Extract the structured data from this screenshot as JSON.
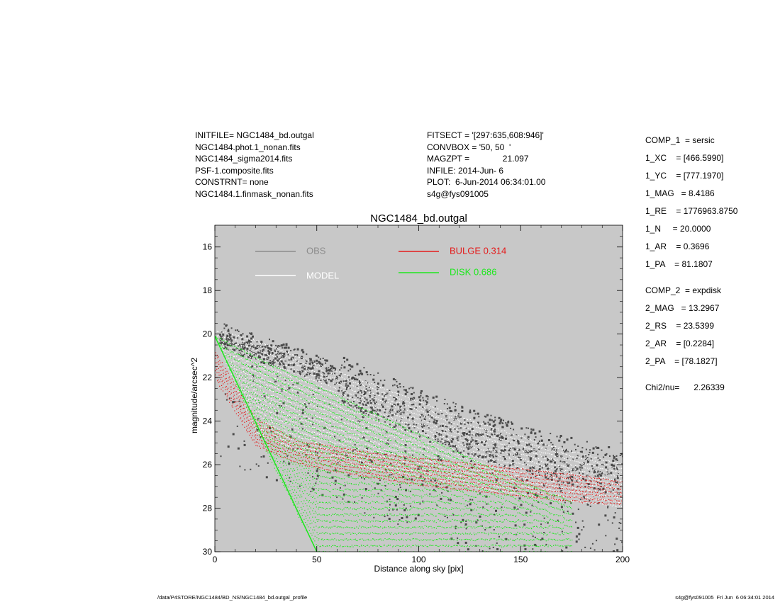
{
  "header_left": [
    "INITFILE= NGC1484_bd.outgal",
    "NGC1484.phot.1_nonan.fits",
    "NGC1484_sigma2014.fits",
    "PSF-1.composite.fits",
    "CONSTRNT= none",
    "NGC1484.1.finmask_nonan.fits"
  ],
  "header_mid": [
    "FITSECT = '[297:635,608:946]'",
    "CONVBOX = '50, 50  '",
    "MAGZPT =              21.097",
    "INFILE: 2014-Jun- 6",
    "PLOT:  6-Jun-2014 06:34:01.00",
    "s4g@fys091005"
  ],
  "header_right": [
    "COMP_1  = sersic",
    "1_XC    = [466.5990]",
    "1_YC    = [777.1970]",
    "1_MAG   = 8.4186",
    "1_RE    = 1776963.8750",
    "1_N     = 20.0000",
    "1_AR    = 0.3696",
    "1_PA    = 81.1807",
    "COMP_2  = expdisk",
    "2_MAG   = 13.2967",
    "2_RS    = 23.5399",
    "2_AR    = [0.2284]",
    "2_PA    = [78.1827]",
    "Chi2/nu=      2.26339"
  ],
  "footer_left": "/data/P4STORE/NGC1484/BD_NS/NGC1484_bd.outgal_profile",
  "footer_right": "s4g@fys091005  Fri Jun  6 06:34:01 2014",
  "colors": {
    "plot_bg": "#c8c8c8",
    "obs": "#4a4a4a",
    "obs_legend": "#8c8c8c",
    "model": "#ffffff",
    "bulge": "#e41a1a",
    "disk": "#1ee81e"
  },
  "chart_data": {
    "type": "scatter",
    "title": "NGC1484_bd.outgal",
    "xlabel": "Distance along sky [pix]",
    "ylabel": "magnitude/arcsec^2",
    "xlim": [
      0,
      200
    ],
    "ylim": [
      30,
      15
    ],
    "y_inverted": true,
    "xticks": [
      0,
      50,
      100,
      150,
      200
    ],
    "yticks": [
      16,
      18,
      20,
      22,
      24,
      26,
      28,
      30
    ],
    "grid": false,
    "legend": [
      {
        "name": "OBS",
        "color": "#8c8c8c",
        "position": "top-left"
      },
      {
        "name": "MODEL",
        "color": "#ffffff",
        "position": "top-left"
      },
      {
        "name": "BULGE  0.314",
        "color": "#e41a1a",
        "position": "top-center"
      },
      {
        "name": "DISK  0.686",
        "color": "#1ee81e",
        "position": "top-center"
      }
    ],
    "series": [
      {
        "name": "OBS",
        "marker": "points",
        "x": [
          2,
          20,
          40,
          60,
          80,
          100,
          120,
          140,
          160,
          180,
          200
        ],
        "y": [
          19.8,
          20.4,
          21.0,
          21.7,
          22.5,
          23.3,
          24.0,
          24.6,
          25.2,
          25.6,
          26.0
        ]
      },
      {
        "name": "MODEL",
        "marker": "band",
        "x": [
          0,
          20,
          40,
          60,
          80,
          100,
          120,
          140,
          160,
          180,
          200
        ],
        "y_upper": [
          19.8,
          20.3,
          21.0,
          21.7,
          22.4,
          23.1,
          23.8,
          24.4,
          25.0,
          25.5,
          26.0
        ],
        "y_lower": [
          20.1,
          24.5,
          25.3,
          25.8,
          26.2,
          26.5,
          26.9,
          27.2,
          27.5,
          27.7,
          27.9
        ]
      },
      {
        "name": "BULGE",
        "marker": "band",
        "x": [
          0,
          20,
          40,
          60,
          80,
          100,
          120,
          140,
          160,
          180,
          200
        ],
        "y_upper": [
          20.8,
          23.9,
          24.9,
          25.2,
          25.5,
          25.7,
          25.9,
          26.1,
          26.3,
          26.5,
          26.8
        ],
        "y_lower": [
          22.0,
          25.1,
          25.9,
          26.3,
          26.6,
          26.9,
          27.1,
          27.3,
          27.5,
          27.7,
          27.8
        ]
      },
      {
        "name": "DISK",
        "marker": "band",
        "x": [
          0,
          25,
          50,
          75,
          100,
          125,
          150,
          175
        ],
        "y_upper": [
          20.1,
          21.3,
          22.4,
          23.5,
          24.6,
          25.7,
          26.8,
          27.7
        ],
        "y_lower": [
          20.1,
          25.3,
          30.0,
          30.0,
          30.0,
          30.0,
          30.0,
          30.0
        ]
      }
    ]
  }
}
